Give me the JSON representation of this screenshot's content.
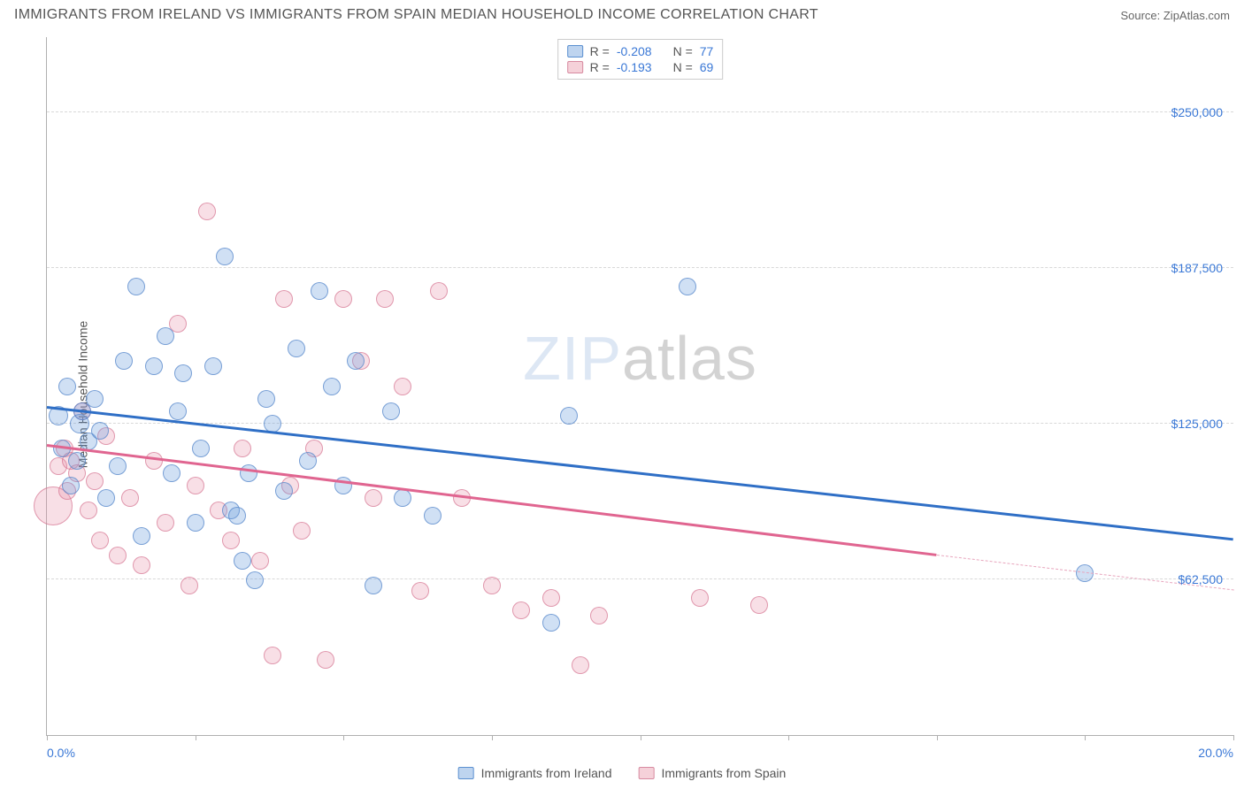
{
  "header": {
    "title": "IMMIGRANTS FROM IRELAND VS IMMIGRANTS FROM SPAIN MEDIAN HOUSEHOLD INCOME CORRELATION CHART",
    "source_prefix": "Source: ",
    "source_name": "ZipAtlas.com"
  },
  "chart": {
    "type": "scatter",
    "ylabel": "Median Household Income",
    "xlim": [
      0,
      20
    ],
    "ylim": [
      0,
      280000
    ],
    "xlim_labels": {
      "min": "0.0%",
      "max": "20.0%"
    },
    "ytick_values": [
      62500,
      125000,
      187500,
      250000
    ],
    "ytick_labels": [
      "$62,500",
      "$125,000",
      "$187,500",
      "$250,000"
    ],
    "xtick_positions": [
      0,
      2.5,
      5,
      7.5,
      10,
      12.5,
      15,
      17.5,
      20
    ],
    "grid_color": "#d8d8d8",
    "axis_color": "#b0b0b0",
    "background_color": "#ffffff",
    "label_fontsize": 14,
    "tick_color": "#3a78d6",
    "watermark_zip": "ZIP",
    "watermark_atlas": "atlas"
  },
  "legend_top": {
    "rows": [
      {
        "r_label": "R =",
        "r_val": "-0.208",
        "n_label": "N =",
        "n_val": "77"
      },
      {
        "r_label": "R =",
        "r_val": "-0.193",
        "n_label": "N =",
        "n_val": "69"
      }
    ]
  },
  "legend_bottom": {
    "items": [
      {
        "label": "Immigrants from Ireland"
      },
      {
        "label": "Immigrants from Spain"
      }
    ]
  },
  "series": {
    "ireland": {
      "color_fill": "rgba(110,160,220,0.32)",
      "color_stroke": "rgba(80,130,200,0.7)",
      "marker_radius": 10,
      "trend": {
        "x1": 0,
        "y1": 131000,
        "x2": 20,
        "y2": 78000
      },
      "points": [
        {
          "x": 0.2,
          "y": 128000,
          "r": 11
        },
        {
          "x": 0.25,
          "y": 115000,
          "r": 10
        },
        {
          "x": 0.35,
          "y": 140000,
          "r": 10
        },
        {
          "x": 0.4,
          "y": 100000,
          "r": 10
        },
        {
          "x": 0.5,
          "y": 110000,
          "r": 10
        },
        {
          "x": 0.55,
          "y": 125000,
          "r": 11
        },
        {
          "x": 0.6,
          "y": 130000,
          "r": 10
        },
        {
          "x": 0.7,
          "y": 118000,
          "r": 10
        },
        {
          "x": 0.8,
          "y": 135000,
          "r": 10
        },
        {
          "x": 0.9,
          "y": 122000,
          "r": 10
        },
        {
          "x": 1.0,
          "y": 95000,
          "r": 10
        },
        {
          "x": 1.2,
          "y": 108000,
          "r": 10
        },
        {
          "x": 1.3,
          "y": 150000,
          "r": 10
        },
        {
          "x": 1.5,
          "y": 180000,
          "r": 10
        },
        {
          "x": 1.6,
          "y": 80000,
          "r": 10
        },
        {
          "x": 1.8,
          "y": 148000,
          "r": 10
        },
        {
          "x": 2.0,
          "y": 160000,
          "r": 10
        },
        {
          "x": 2.1,
          "y": 105000,
          "r": 10
        },
        {
          "x": 2.2,
          "y": 130000,
          "r": 10
        },
        {
          "x": 2.3,
          "y": 145000,
          "r": 10
        },
        {
          "x": 2.5,
          "y": 85000,
          "r": 10
        },
        {
          "x": 2.6,
          "y": 115000,
          "r": 10
        },
        {
          "x": 2.8,
          "y": 148000,
          "r": 10
        },
        {
          "x": 3.0,
          "y": 192000,
          "r": 10
        },
        {
          "x": 3.1,
          "y": 90000,
          "r": 10
        },
        {
          "x": 3.2,
          "y": 88000,
          "r": 10
        },
        {
          "x": 3.3,
          "y": 70000,
          "r": 10
        },
        {
          "x": 3.4,
          "y": 105000,
          "r": 10
        },
        {
          "x": 3.5,
          "y": 62000,
          "r": 10
        },
        {
          "x": 3.7,
          "y": 135000,
          "r": 10
        },
        {
          "x": 3.8,
          "y": 125000,
          "r": 10
        },
        {
          "x": 4.0,
          "y": 98000,
          "r": 10
        },
        {
          "x": 4.2,
          "y": 155000,
          "r": 10
        },
        {
          "x": 4.4,
          "y": 110000,
          "r": 10
        },
        {
          "x": 4.6,
          "y": 178000,
          "r": 10
        },
        {
          "x": 4.8,
          "y": 140000,
          "r": 10
        },
        {
          "x": 5.0,
          "y": 100000,
          "r": 10
        },
        {
          "x": 5.2,
          "y": 150000,
          "r": 10
        },
        {
          "x": 5.5,
          "y": 60000,
          "r": 10
        },
        {
          "x": 5.8,
          "y": 130000,
          "r": 10
        },
        {
          "x": 6.0,
          "y": 95000,
          "r": 10
        },
        {
          "x": 6.5,
          "y": 88000,
          "r": 10
        },
        {
          "x": 8.5,
          "y": 45000,
          "r": 10
        },
        {
          "x": 8.8,
          "y": 128000,
          "r": 10
        },
        {
          "x": 10.8,
          "y": 180000,
          "r": 10
        },
        {
          "x": 17.5,
          "y": 65000,
          "r": 10
        }
      ]
    },
    "spain": {
      "color_fill": "rgba(230,140,165,0.28)",
      "color_stroke": "rgba(210,110,140,0.65)",
      "marker_radius": 10,
      "trend_solid": {
        "x1": 0,
        "y1": 116000,
        "x2": 15,
        "y2": 72000
      },
      "trend_dashed": {
        "x1": 15,
        "y1": 72000,
        "x2": 20,
        "y2": 58000
      },
      "points": [
        {
          "x": 0.1,
          "y": 92000,
          "r": 22
        },
        {
          "x": 0.2,
          "y": 108000,
          "r": 10
        },
        {
          "x": 0.3,
          "y": 115000,
          "r": 10
        },
        {
          "x": 0.35,
          "y": 98000,
          "r": 10
        },
        {
          "x": 0.4,
          "y": 110000,
          "r": 10
        },
        {
          "x": 0.5,
          "y": 105000,
          "r": 10
        },
        {
          "x": 0.6,
          "y": 130000,
          "r": 10
        },
        {
          "x": 0.7,
          "y": 90000,
          "r": 10
        },
        {
          "x": 0.8,
          "y": 102000,
          "r": 10
        },
        {
          "x": 0.9,
          "y": 78000,
          "r": 10
        },
        {
          "x": 1.0,
          "y": 120000,
          "r": 10
        },
        {
          "x": 1.2,
          "y": 72000,
          "r": 10
        },
        {
          "x": 1.4,
          "y": 95000,
          "r": 10
        },
        {
          "x": 1.6,
          "y": 68000,
          "r": 10
        },
        {
          "x": 1.8,
          "y": 110000,
          "r": 10
        },
        {
          "x": 2.0,
          "y": 85000,
          "r": 10
        },
        {
          "x": 2.2,
          "y": 165000,
          "r": 10
        },
        {
          "x": 2.4,
          "y": 60000,
          "r": 10
        },
        {
          "x": 2.5,
          "y": 100000,
          "r": 10
        },
        {
          "x": 2.7,
          "y": 210000,
          "r": 10
        },
        {
          "x": 2.9,
          "y": 90000,
          "r": 10
        },
        {
          "x": 3.1,
          "y": 78000,
          "r": 10
        },
        {
          "x": 3.3,
          "y": 115000,
          "r": 10
        },
        {
          "x": 3.6,
          "y": 70000,
          "r": 10
        },
        {
          "x": 3.8,
          "y": 32000,
          "r": 10
        },
        {
          "x": 4.0,
          "y": 175000,
          "r": 10
        },
        {
          "x": 4.1,
          "y": 100000,
          "r": 10
        },
        {
          "x": 4.3,
          "y": 82000,
          "r": 10
        },
        {
          "x": 4.5,
          "y": 115000,
          "r": 10
        },
        {
          "x": 4.7,
          "y": 30000,
          "r": 10
        },
        {
          "x": 5.0,
          "y": 175000,
          "r": 10
        },
        {
          "x": 5.3,
          "y": 150000,
          "r": 10
        },
        {
          "x": 5.5,
          "y": 95000,
          "r": 10
        },
        {
          "x": 5.7,
          "y": 175000,
          "r": 10
        },
        {
          "x": 6.0,
          "y": 140000,
          "r": 10
        },
        {
          "x": 6.3,
          "y": 58000,
          "r": 10
        },
        {
          "x": 6.6,
          "y": 178000,
          "r": 10
        },
        {
          "x": 7.0,
          "y": 95000,
          "r": 10
        },
        {
          "x": 7.5,
          "y": 60000,
          "r": 10
        },
        {
          "x": 8.0,
          "y": 50000,
          "r": 10
        },
        {
          "x": 8.5,
          "y": 55000,
          "r": 10
        },
        {
          "x": 9.0,
          "y": 28000,
          "r": 10
        },
        {
          "x": 9.3,
          "y": 48000,
          "r": 10
        },
        {
          "x": 11.0,
          "y": 55000,
          "r": 10
        },
        {
          "x": 12.0,
          "y": 52000,
          "r": 10
        }
      ]
    }
  }
}
